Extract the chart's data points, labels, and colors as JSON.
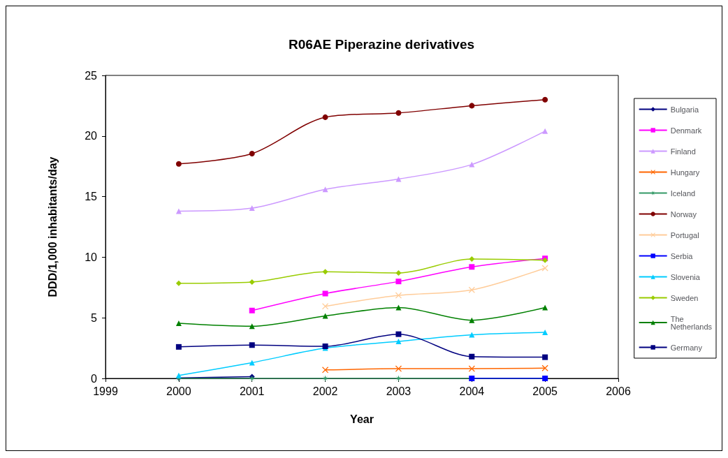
{
  "chart_data": {
    "type": "line",
    "title": "R06AE Piperazine derivatives",
    "xlabel": "Year",
    "ylabel": "DDD/1,000 inhabitants/day",
    "x": [
      2000,
      2001,
      2002,
      2003,
      2004,
      2005
    ],
    "xlim": [
      1999,
      2006
    ],
    "xticks": [
      1999,
      2000,
      2001,
      2002,
      2003,
      2004,
      2005,
      2006
    ],
    "ylim": [
      0,
      25
    ],
    "yticks": [
      0,
      5,
      10,
      15,
      20,
      25
    ],
    "grid": false,
    "legend": "right",
    "line_style": "solid",
    "series": [
      {
        "name": "Bulgaria",
        "color": "#000080",
        "marker": "diamond",
        "values": [
          0.05,
          0.15,
          null,
          null,
          null,
          null
        ]
      },
      {
        "name": "Denmark",
        "color": "#ff00ff",
        "marker": "square",
        "values": [
          null,
          5.6,
          7.0,
          8.0,
          9.2,
          9.9
        ]
      },
      {
        "name": "Finland",
        "color": "#cc99ff",
        "marker": "triangle",
        "values": [
          13.8,
          14.05,
          15.6,
          16.45,
          17.65,
          20.4
        ]
      },
      {
        "name": "Hungary",
        "color": "#ff6600",
        "marker": "cross",
        "values": [
          null,
          null,
          0.7,
          0.8,
          0.8,
          0.85
        ]
      },
      {
        "name": "Iceland",
        "color": "#339966",
        "marker": "star",
        "values": [
          0,
          0,
          0,
          0,
          0,
          0
        ]
      },
      {
        "name": "Norway",
        "color": "#800000",
        "marker": "circle",
        "values": [
          17.7,
          18.55,
          21.55,
          21.9,
          22.5,
          23.0
        ]
      },
      {
        "name": "Portugal",
        "color": "#ffcc99",
        "marker": "cross",
        "values": [
          null,
          null,
          5.95,
          6.85,
          7.3,
          9.1
        ]
      },
      {
        "name": "Serbia",
        "color": "#0000ff",
        "marker": "square",
        "values": [
          null,
          null,
          null,
          null,
          0,
          0
        ]
      },
      {
        "name": "Slovenia",
        "color": "#00ccff",
        "marker": "triangle",
        "values": [
          0.25,
          1.3,
          2.5,
          3.05,
          3.6,
          3.8
        ]
      },
      {
        "name": "Sweden",
        "color": "#99cc00",
        "marker": "diamond",
        "values": [
          7.85,
          7.95,
          8.8,
          8.7,
          9.85,
          9.75
        ]
      },
      {
        "name": "The Netherlands",
        "color": "#008000",
        "marker": "triangle",
        "values": [
          4.55,
          4.3,
          5.15,
          5.85,
          4.8,
          5.85
        ]
      },
      {
        "name": "Germany",
        "color": "#000080",
        "marker": "square",
        "values": [
          2.6,
          2.75,
          2.65,
          3.65,
          1.8,
          1.75
        ]
      }
    ]
  }
}
